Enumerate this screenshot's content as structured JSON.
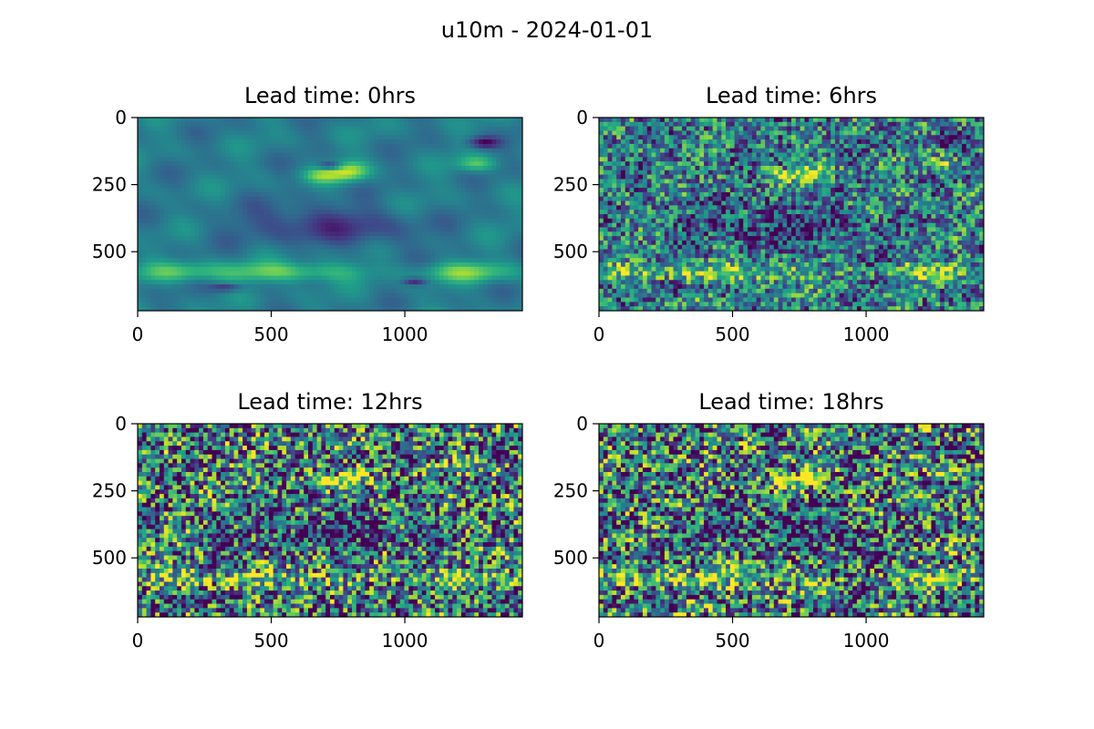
{
  "figure": {
    "suptitle": "u10m - 2024-01-01"
  },
  "chart_data": [
    {
      "type": "heatmap",
      "title": "Lead time: 0hrs",
      "colormap": "viridis",
      "xlim": [
        0,
        1440
      ],
      "ylim": [
        720,
        0
      ],
      "xticks": [
        0,
        500,
        1000
      ],
      "yticks": [
        0,
        250,
        500
      ],
      "noise_level": 0.0
    },
    {
      "type": "heatmap",
      "title": "Lead time: 6hrs",
      "colormap": "viridis",
      "xlim": [
        0,
        1440
      ],
      "ylim": [
        720,
        0
      ],
      "xticks": [
        0,
        500,
        1000
      ],
      "yticks": [
        0,
        250,
        500
      ],
      "noise_level": 0.55
    },
    {
      "type": "heatmap",
      "title": "Lead time: 12hrs",
      "colormap": "viridis",
      "xlim": [
        0,
        1440
      ],
      "ylim": [
        720,
        0
      ],
      "xticks": [
        0,
        500,
        1000
      ],
      "yticks": [
        0,
        250,
        500
      ],
      "noise_level": 0.8
    },
    {
      "type": "heatmap",
      "title": "Lead time: 18hrs",
      "colormap": "viridis",
      "xlim": [
        0,
        1440
      ],
      "ylim": [
        720,
        0
      ],
      "xticks": [
        0,
        500,
        1000
      ],
      "yticks": [
        0,
        250,
        500
      ],
      "noise_level": 0.8
    }
  ]
}
